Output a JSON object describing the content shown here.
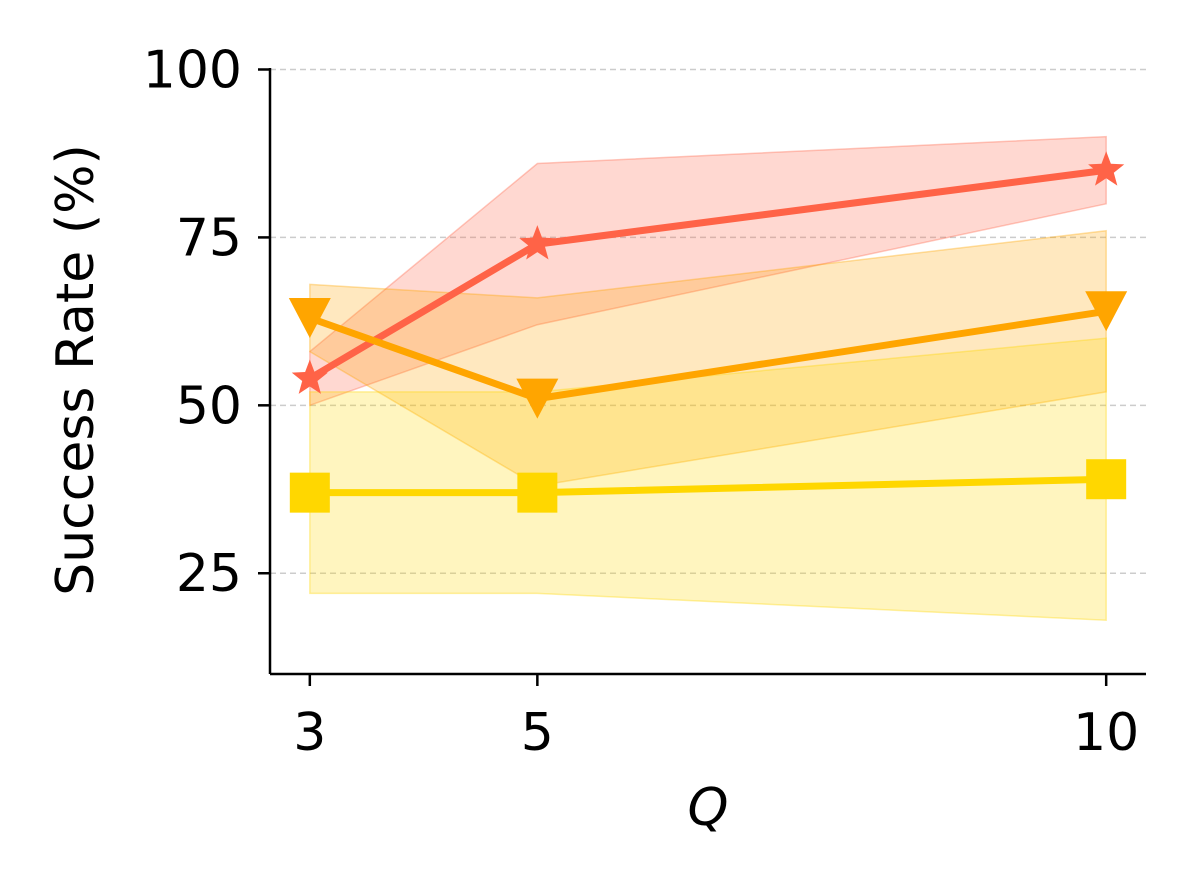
{
  "chart_data": {
    "type": "line",
    "xlabel": "Q",
    "ylabel": "Success Rate (%)",
    "x": [
      3,
      5,
      10
    ],
    "xticks": [
      "3",
      "5",
      "10"
    ],
    "yticks": [
      "25",
      "50",
      "75",
      "100"
    ],
    "ytick_values": [
      25,
      50,
      75,
      100
    ],
    "ylim": [
      10,
      100
    ],
    "xlim": [
      2.65,
      10.35
    ],
    "grid": "horizontal dashed",
    "legend": "none",
    "series": [
      {
        "marker": "star",
        "color": "#FF6347",
        "values": [
          54,
          74,
          85
        ],
        "band_upper": [
          58,
          86,
          90
        ],
        "band_lower": [
          50,
          62,
          80
        ]
      },
      {
        "marker": "triangle-down",
        "color": "#FFA500",
        "values": [
          63,
          51,
          64
        ],
        "band_upper": [
          68,
          66,
          76
        ],
        "band_lower": [
          58,
          38,
          52
        ]
      },
      {
        "marker": "square",
        "color": "#FFD700",
        "values": [
          37,
          37,
          39
        ],
        "band_upper": [
          52,
          52,
          60
        ],
        "band_lower": [
          22,
          22,
          18
        ]
      }
    ]
  }
}
